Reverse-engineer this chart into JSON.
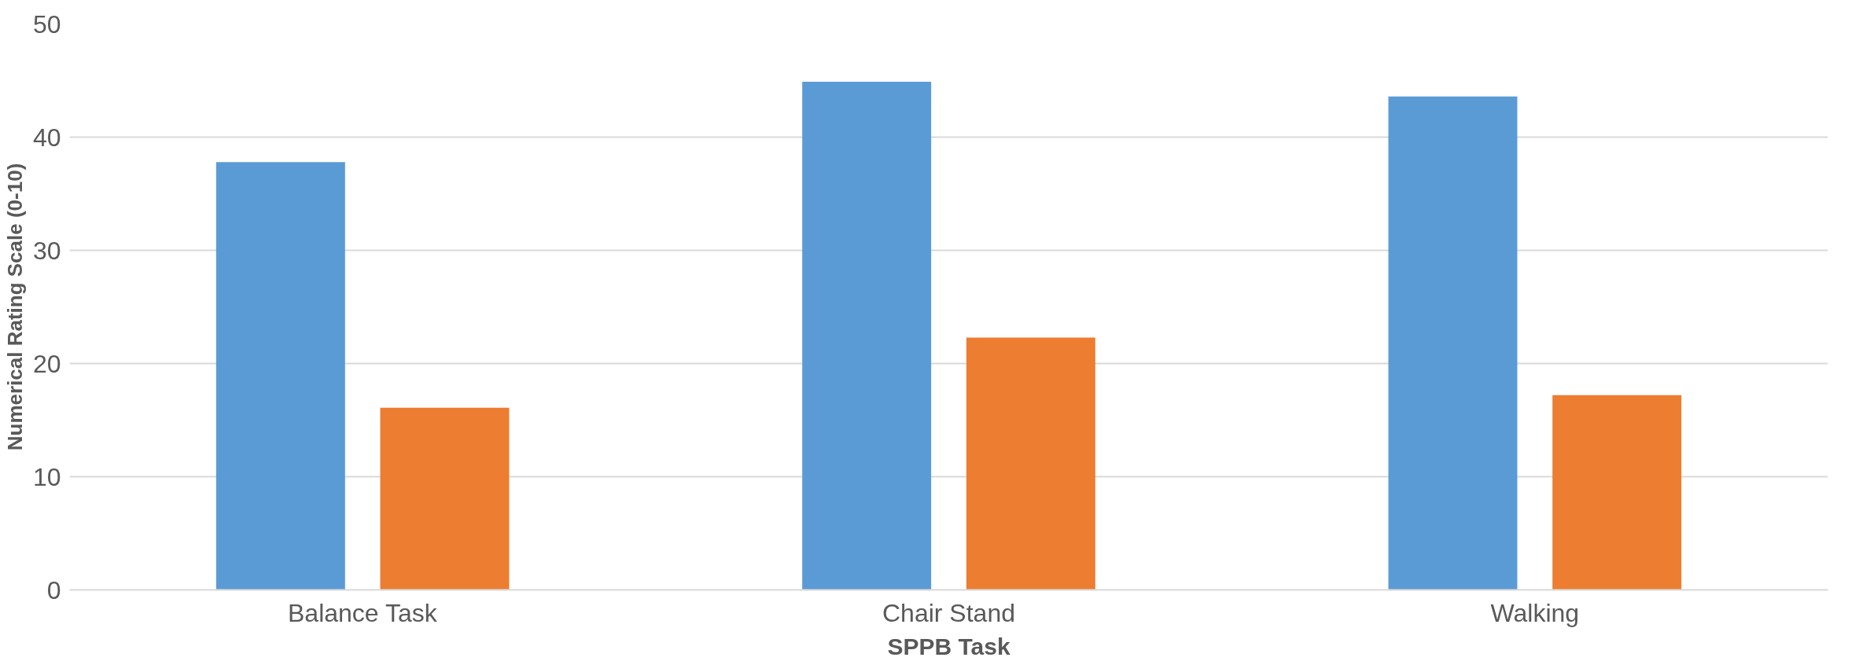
{
  "chart_data": {
    "type": "bar",
    "xlabel": "SPPB Task",
    "ylabel": "Numerical Rating Scale (0-10)",
    "categories": [
      "Balance Task",
      "Chair Stand",
      "Walking"
    ],
    "series": [
      {
        "color": "#5b9bd5",
        "values": [
          37.8,
          44.9,
          43.6
        ]
      },
      {
        "color": "#ed7d31",
        "values": [
          16.1,
          22.3,
          17.2
        ]
      }
    ],
    "ylim": [
      0,
      50
    ],
    "yticks": [
      0,
      10,
      20,
      30,
      40,
      50
    ],
    "grid": "y"
  }
}
